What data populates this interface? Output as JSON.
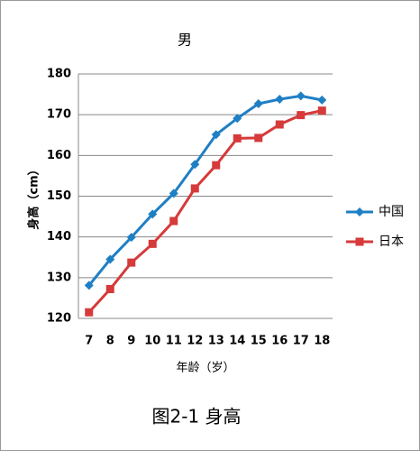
{
  "chart_data": {
    "type": "line",
    "title": "男",
    "x_label": "年龄（岁）",
    "y_label": "身高（cm）",
    "caption": "图2-1  身高",
    "categories": [
      "7",
      "8",
      "9",
      "10",
      "11",
      "12",
      "13",
      "14",
      "15",
      "16",
      "17",
      "18"
    ],
    "series": [
      {
        "name": "中国",
        "color": "#1f7fc4",
        "marker": "diamond",
        "values": [
          128.1,
          134.5,
          139.9,
          145.6,
          150.7,
          157.8,
          165.1,
          169.1,
          172.7,
          173.8,
          174.6,
          173.6
        ]
      },
      {
        "name": "日本",
        "color": "#d63a3a",
        "marker": "square",
        "values": [
          121.5,
          127.2,
          133.7,
          138.3,
          143.9,
          151.9,
          157.6,
          164.2,
          164.3,
          167.6,
          169.9,
          171.0
        ]
      }
    ],
    "ylim": [
      120,
      180
    ],
    "yticks": [
      120,
      130,
      140,
      150,
      160,
      170,
      180
    ],
    "grid": true,
    "legend": "right"
  }
}
